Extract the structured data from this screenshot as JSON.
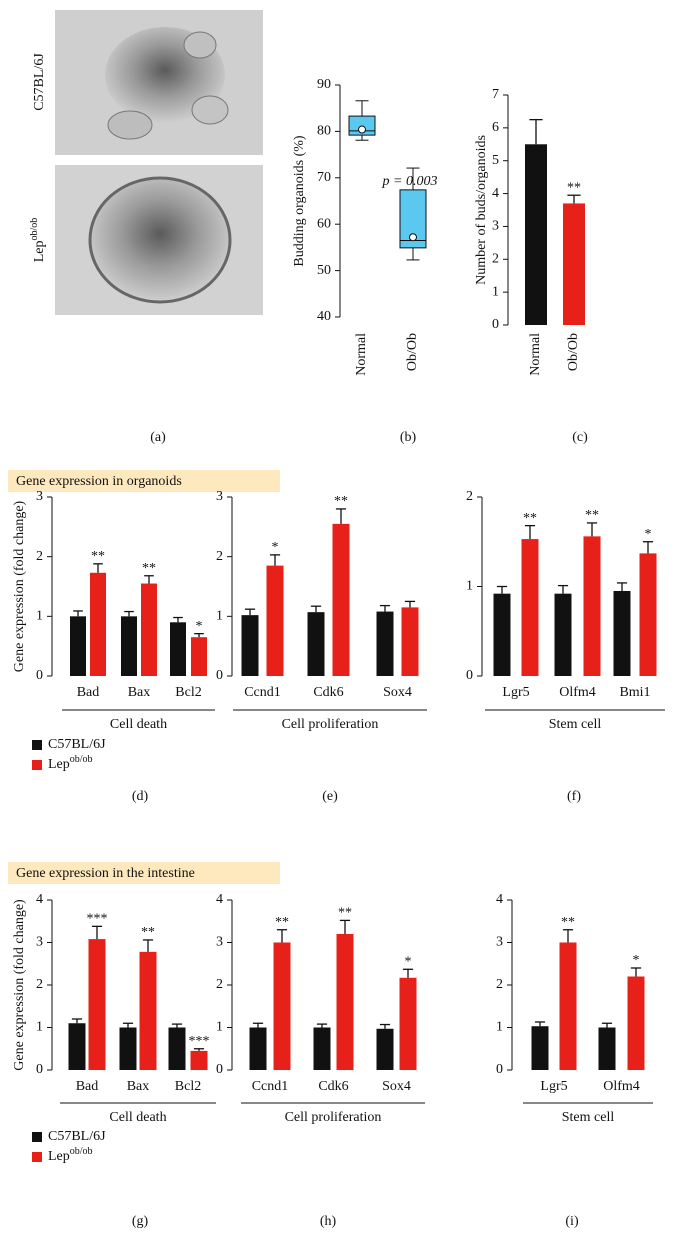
{
  "images": {
    "label": "(a)",
    "rows": [
      {
        "text": "C57BL/6J"
      },
      {
        "text": "Lep",
        "sup": "ob/ob"
      }
    ]
  },
  "sections": [
    "Gene expression in organoids",
    "Gene expression in the intestine"
  ],
  "chart_data": [
    {
      "type": "box",
      "label": "(b)",
      "ylabel": "Budding organoids (%)",
      "categories": [
        "Normal",
        "Ob/Ob"
      ],
      "color": "#5bc8f0",
      "boxes": [
        {
          "whislo": 78.1,
          "q1": 79.2,
          "med": 80.1,
          "q3": 83.3,
          "whishi": 86.6,
          "mean": 80.4
        },
        {
          "whislo": 52.3,
          "q1": 54.9,
          "med": 56.5,
          "q3": 67.4,
          "whishi": 72.1,
          "mean": 57.2
        }
      ],
      "annotation": "p = 0.003",
      "ylim": [
        40,
        90
      ],
      "yticks": [
        40,
        50,
        60,
        70,
        80,
        90
      ]
    },
    {
      "type": "bar",
      "label": "(c)",
      "ylabel": "Number of buds/organoids",
      "categories": [
        "Normal",
        "Ob/Ob"
      ],
      "values": [
        5.5,
        3.7
      ],
      "errors": [
        0.75,
        0.25
      ],
      "colors": [
        "#111111",
        "#e8201a"
      ],
      "annotations": [
        null,
        "**"
      ],
      "ylim": [
        0,
        7
      ],
      "yticks": [
        0,
        1,
        2,
        3,
        4,
        5,
        6,
        7
      ]
    },
    {
      "type": "grouped",
      "label": "(d)",
      "ylabel": "Gene expression (fold change)",
      "categories": [
        "Bad",
        "Bax",
        "Bcl2"
      ],
      "group_label": "Cell death",
      "series": [
        {
          "name": "C57BL/6J",
          "color": "#111111",
          "values": [
            1.0,
            1.0,
            0.9
          ],
          "errors": [
            0.09,
            0.08,
            0.08
          ]
        },
        {
          "name": "Lep",
          "name_sup": "ob/ob",
          "color": "#e8201a",
          "values": [
            1.73,
            1.55,
            0.65
          ],
          "errors": [
            0.15,
            0.13,
            0.06
          ],
          "annotations": [
            "**",
            "**",
            "*"
          ]
        }
      ],
      "ylim": [
        0,
        3
      ],
      "yticks": [
        0,
        1,
        2,
        3
      ]
    },
    {
      "type": "grouped",
      "label": "(e)",
      "categories": [
        "Ccnd1",
        "Cdk6",
        "Sox4"
      ],
      "group_label": "Cell proliferation",
      "series": [
        {
          "color": "#111111",
          "values": [
            1.02,
            1.07,
            1.08
          ],
          "errors": [
            0.1,
            0.1,
            0.1
          ]
        },
        {
          "color": "#e8201a",
          "values": [
            1.85,
            2.55,
            1.15
          ],
          "errors": [
            0.18,
            0.25,
            0.1
          ],
          "annotations": [
            "*",
            "**",
            null
          ]
        }
      ],
      "ylim": [
        0,
        3
      ],
      "yticks": [
        0,
        1,
        2,
        3
      ]
    },
    {
      "type": "grouped",
      "label": "(f)",
      "categories": [
        "Lgr5",
        "Olfm4",
        "Bmi1"
      ],
      "group_label": "Stem cell",
      "series": [
        {
          "color": "#111111",
          "values": [
            0.92,
            0.92,
            0.95
          ],
          "errors": [
            0.08,
            0.09,
            0.09
          ]
        },
        {
          "color": "#e8201a",
          "values": [
            1.53,
            1.56,
            1.37
          ],
          "errors": [
            0.15,
            0.15,
            0.13
          ],
          "annotations": [
            "**",
            "**",
            "*"
          ]
        }
      ],
      "ylim": [
        0,
        2
      ],
      "yticks": [
        0,
        1,
        2
      ]
    },
    {
      "type": "grouped",
      "label": "(g)",
      "ylabel": "Gene expression (fold change)",
      "categories": [
        "Bad",
        "Bax",
        "Bcl2"
      ],
      "group_label": "Cell death",
      "series": [
        {
          "name": "C57BL/6J",
          "color": "#111111",
          "values": [
            1.1,
            1.0,
            1.0
          ],
          "errors": [
            0.1,
            0.1,
            0.08
          ]
        },
        {
          "name": "Lep",
          "name_sup": "ob/ob",
          "color": "#e8201a",
          "values": [
            3.08,
            2.78,
            0.45
          ],
          "errors": [
            0.3,
            0.28,
            0.05
          ],
          "annotations": [
            "***",
            "**",
            "***"
          ]
        }
      ],
      "ylim": [
        0,
        4
      ],
      "yticks": [
        0,
        1,
        2,
        3,
        4
      ]
    },
    {
      "type": "grouped",
      "label": "(h)",
      "categories": [
        "Ccnd1",
        "Cdk6",
        "Sox4"
      ],
      "group_label": "Cell proliferation",
      "series": [
        {
          "color": "#111111",
          "values": [
            1.0,
            1.0,
            0.97
          ],
          "errors": [
            0.1,
            0.08,
            0.1
          ]
        },
        {
          "color": "#e8201a",
          "values": [
            3.0,
            3.2,
            2.17
          ],
          "errors": [
            0.3,
            0.32,
            0.2
          ],
          "annotations": [
            "**",
            "**",
            "*"
          ]
        }
      ],
      "ylim": [
        0,
        4
      ],
      "yticks": [
        0,
        1,
        2,
        3,
        4
      ]
    },
    {
      "type": "grouped",
      "label": "(i)",
      "categories": [
        "Lgr5",
        "Olfm4"
      ],
      "group_label": "Stem cell",
      "series": [
        {
          "color": "#111111",
          "values": [
            1.03,
            1.0
          ],
          "errors": [
            0.1,
            0.1
          ]
        },
        {
          "color": "#e8201a",
          "values": [
            3.0,
            2.2
          ],
          "errors": [
            0.3,
            0.2
          ],
          "annotations": [
            "**",
            "*"
          ]
        }
      ],
      "ylim": [
        0,
        4
      ],
      "yticks": [
        0,
        1,
        2,
        3,
        4
      ]
    }
  ]
}
